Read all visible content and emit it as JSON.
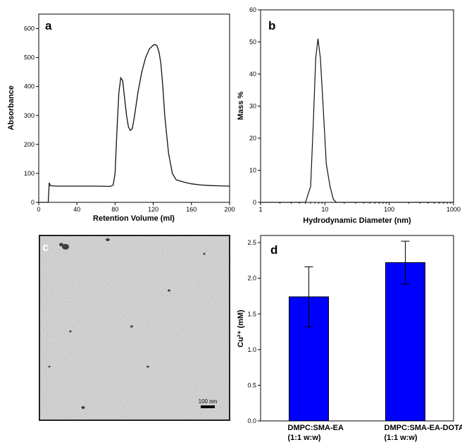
{
  "chart_data": [
    {
      "panel": "a",
      "type": "line",
      "xlabel": "Retention Volume (ml)",
      "ylabel": "Absorbance",
      "xlim": [
        0,
        200
      ],
      "ylim": [
        0,
        650
      ],
      "xticks": [
        "0",
        "40",
        "80",
        "120",
        "160",
        "200"
      ],
      "yticks": [
        "0",
        "100",
        "200",
        "300",
        "400",
        "500",
        "600"
      ],
      "series": [
        {
          "x": [
            0,
            10,
            11,
            12,
            14,
            20,
            40,
            60,
            75,
            78,
            80,
            82,
            84,
            86,
            88,
            90,
            92,
            94,
            96,
            98,
            100,
            104,
            108,
            112,
            116,
            120,
            122,
            124,
            126,
            128,
            130,
            132,
            136,
            140,
            144,
            148,
            152,
            160,
            170,
            180,
            190,
            200
          ],
          "y": [
            0,
            0,
            68,
            58,
            57,
            56,
            56,
            56,
            55,
            60,
            100,
            250,
            380,
            430,
            420,
            360,
            300,
            260,
            248,
            255,
            290,
            380,
            450,
            500,
            530,
            543,
            545,
            540,
            520,
            480,
            400,
            300,
            170,
            100,
            78,
            74,
            70,
            64,
            60,
            58,
            57,
            56
          ]
        }
      ]
    },
    {
      "panel": "b",
      "type": "line",
      "xlabel": "Hydrodynamic Diameter (nm)",
      "ylabel": "Mass %",
      "xscale": "log",
      "xlim": [
        1,
        1000
      ],
      "ylim": [
        0,
        60
      ],
      "xticks": [
        "1",
        "10",
        "100",
        "1000"
      ],
      "yticks": [
        "0",
        "10",
        "20",
        "30",
        "40",
        "50",
        "60"
      ],
      "series": [
        {
          "x": [
            1,
            5,
            6,
            6.6,
            7.2,
            7.8,
            8.5,
            9.5,
            10.5,
            12,
            13.5,
            15,
            100,
            1000
          ],
          "y": [
            0,
            0,
            5,
            25,
            45,
            51,
            45,
            28,
            12,
            5,
            1,
            0,
            0,
            0
          ]
        }
      ]
    },
    {
      "panel": "d",
      "type": "bar",
      "ylabel": "Cu²⁺ (mM)",
      "ylim": [
        0,
        2.6
      ],
      "yticks": [
        "0.0",
        "0.5",
        "1.0",
        "1.5",
        "2.0",
        "2.5"
      ],
      "categories": [
        [
          "DMPC:SMA-EA",
          "(1:1 w:w)"
        ],
        [
          "DMPC:SMA-EA-DOTA",
          "(1:1 w:w)"
        ]
      ],
      "values": [
        1.74,
        2.22
      ],
      "errors": [
        0.42,
        0.3
      ],
      "bar_color": "#0000ff"
    }
  ],
  "panels": {
    "a": "a",
    "b": "b",
    "c": "c",
    "d": "d"
  },
  "micrograph": {
    "scale_label": "100 nm"
  }
}
